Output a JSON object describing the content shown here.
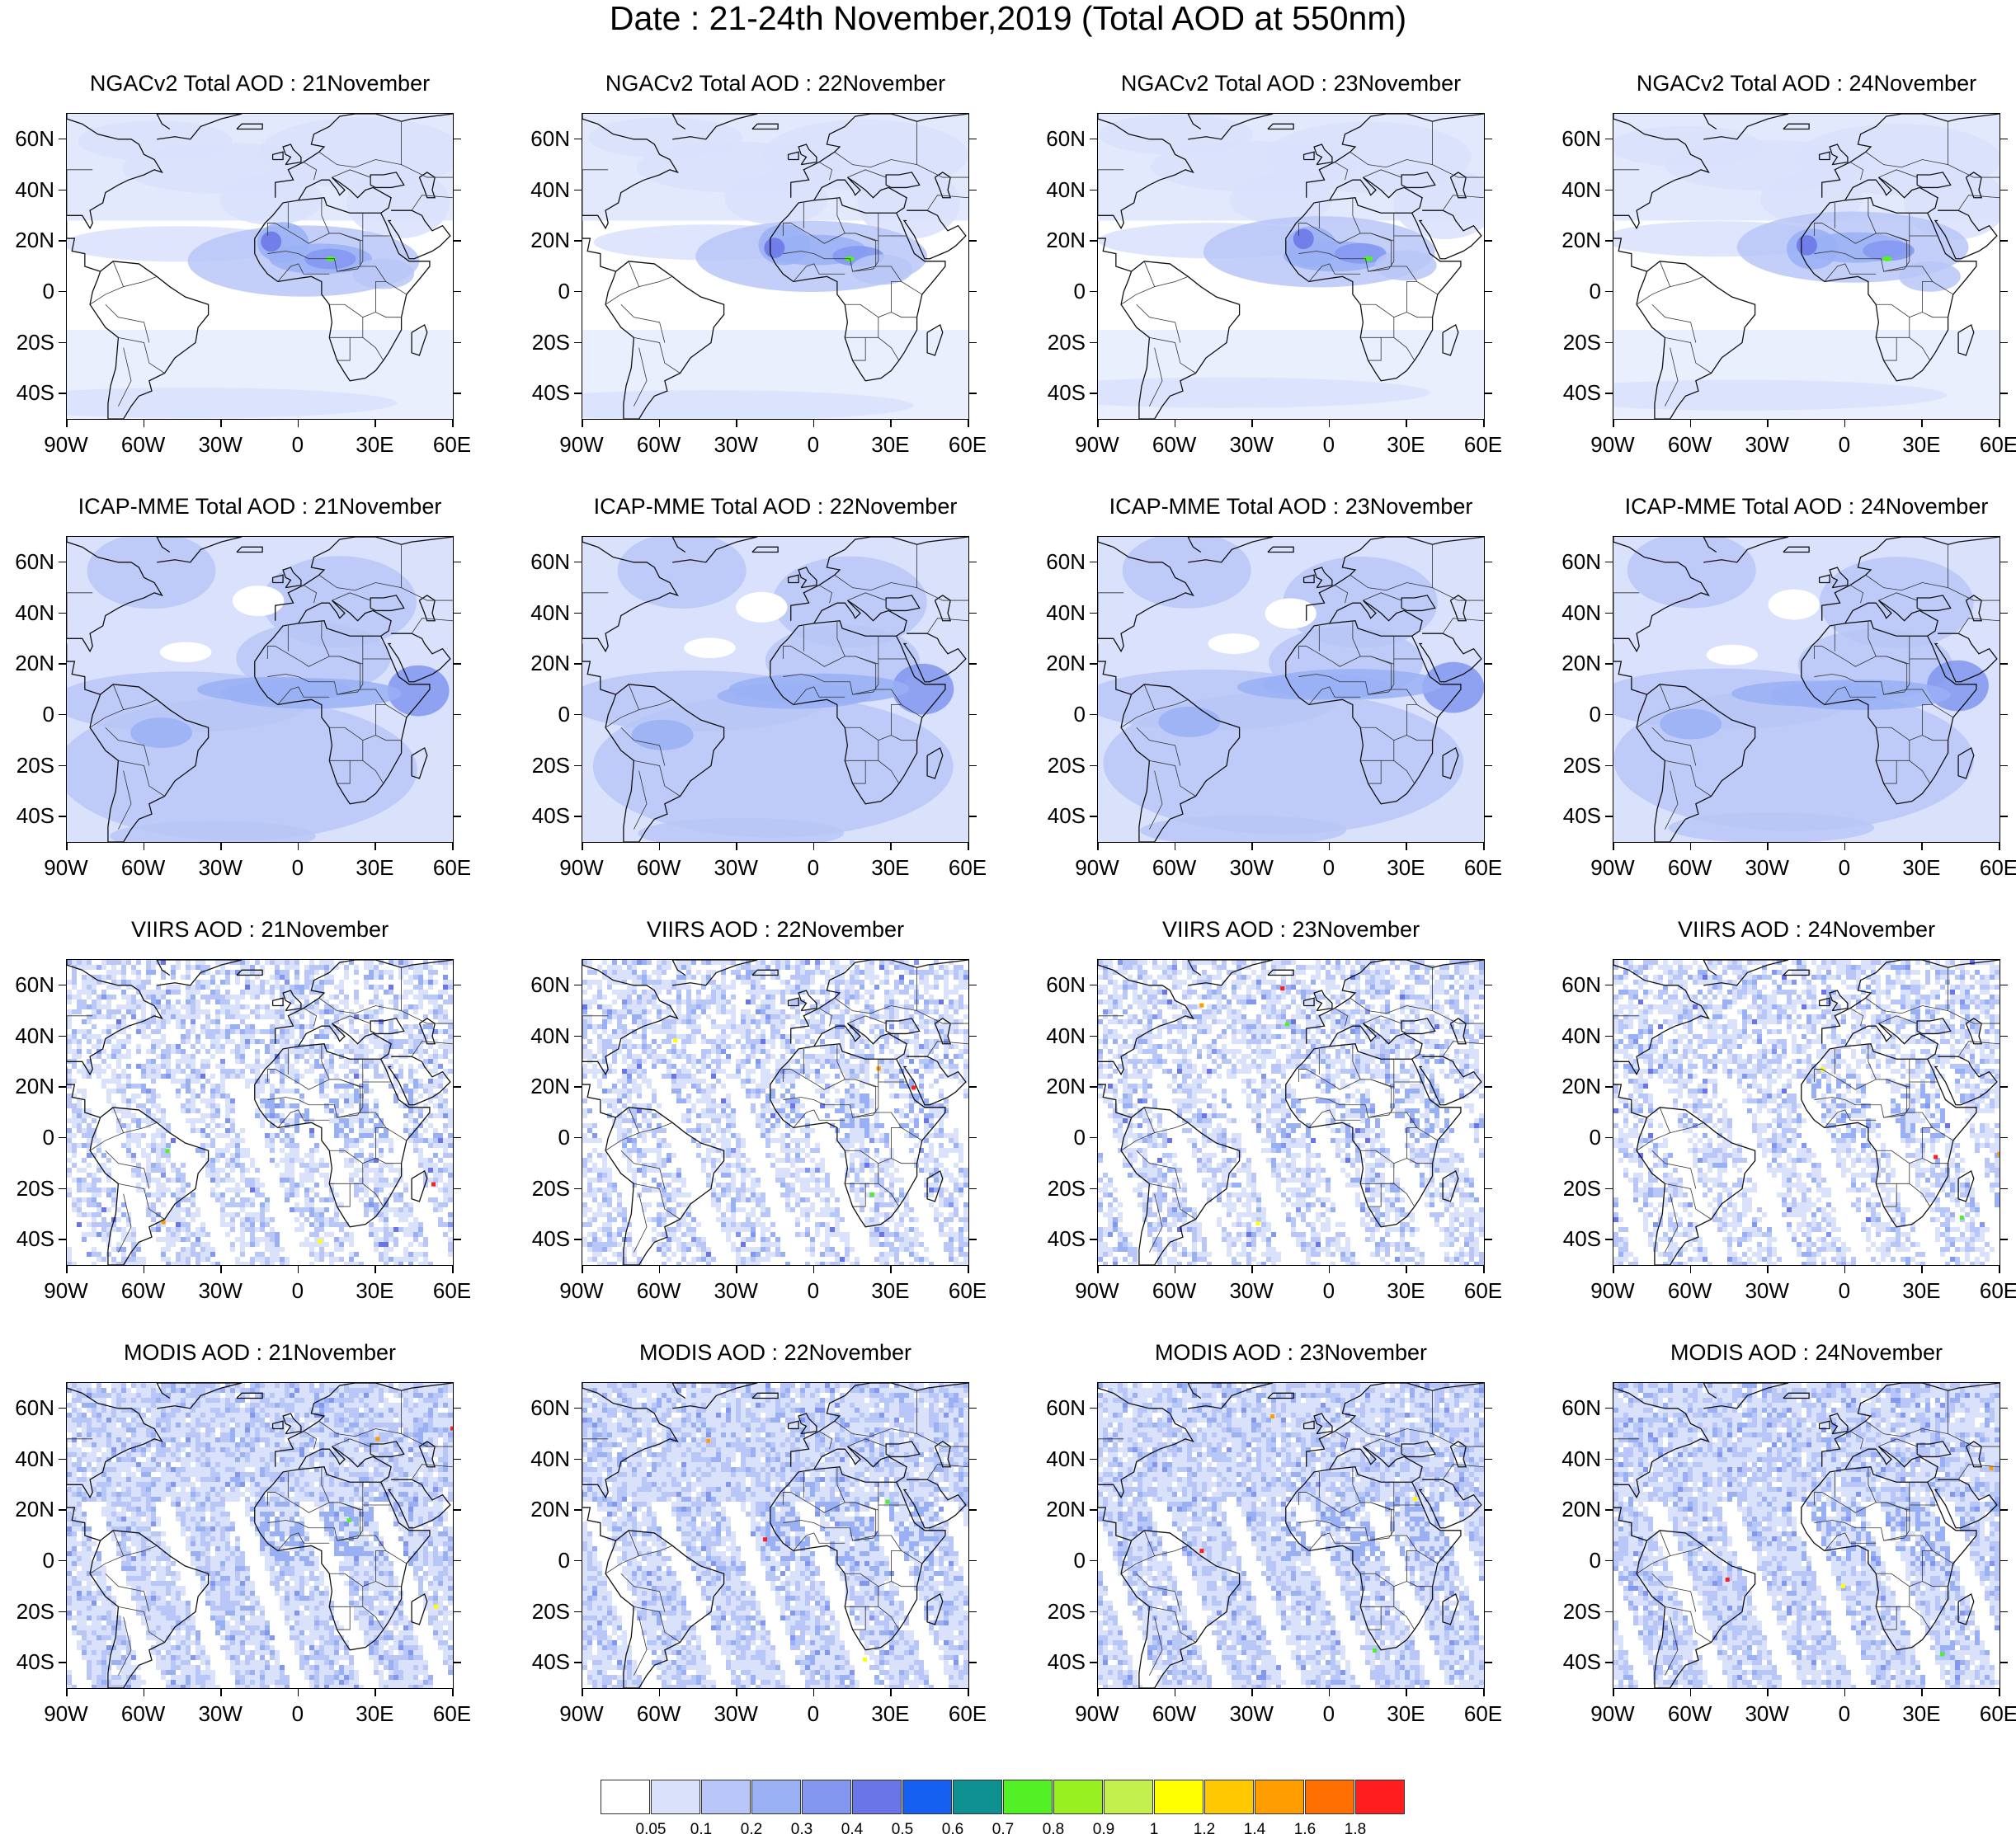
{
  "title": "Date : 21-24th November,2019 (Total AOD at 550nm)",
  "rows": [
    {
      "model": "NGACv2 Total AOD",
      "style": "smooth-low"
    },
    {
      "model": "ICAP-MME Total AOD",
      "style": "smooth-high"
    },
    {
      "model": "VIIRS AOD",
      "style": "swath-sparse"
    },
    {
      "model": "MODIS AOD",
      "style": "swath"
    }
  ],
  "panel_titles": [
    [
      "NGACv2 Total AOD : 21November",
      "NGACv2 Total AOD : 22November",
      "NGACv2 Total AOD : 23November",
      "NGACv2 Total AOD : 24November"
    ],
    [
      "ICAP-MME Total AOD : 21November",
      "ICAP-MME Total AOD : 22November",
      "ICAP-MME Total AOD : 23November",
      "ICAP-MME Total AOD : 24November"
    ],
    [
      "VIIRS AOD : 21November",
      "VIIRS AOD : 22November",
      "VIIRS AOD : 23November",
      "VIIRS AOD : 24November"
    ],
    [
      "MODIS AOD : 21November",
      "MODIS AOD : 22November",
      "MODIS AOD : 23November",
      "MODIS AOD : 24November"
    ]
  ],
  "lat_labels": [
    "60N",
    "40N",
    "20N",
    "0",
    "20S",
    "40S"
  ],
  "lon_labels": [
    "90W",
    "60W",
    "30W",
    "0",
    "30E",
    "60E"
  ],
  "extent": {
    "lon": [
      -90,
      60
    ],
    "lat": [
      -50,
      70
    ]
  },
  "colorbar": {
    "colors": [
      "#ffffff",
      "#d9e1fb",
      "#b8c7f7",
      "#99b0f4",
      "#8197f0",
      "#6a75e8",
      "#1560f0",
      "#0f9090",
      "#52f024",
      "#98f020",
      "#c3f04c",
      "#ffff00",
      "#ffc800",
      "#ff9c00",
      "#ff6e00",
      "#ff1e1e"
    ],
    "labels": [
      "0.05",
      "0.1",
      "0.2",
      "0.3",
      "0.4",
      "0.5",
      "0.6",
      "0.7",
      "0.8",
      "0.9",
      "1",
      "1.2",
      "1.4",
      "1.6",
      "1.8"
    ]
  }
}
